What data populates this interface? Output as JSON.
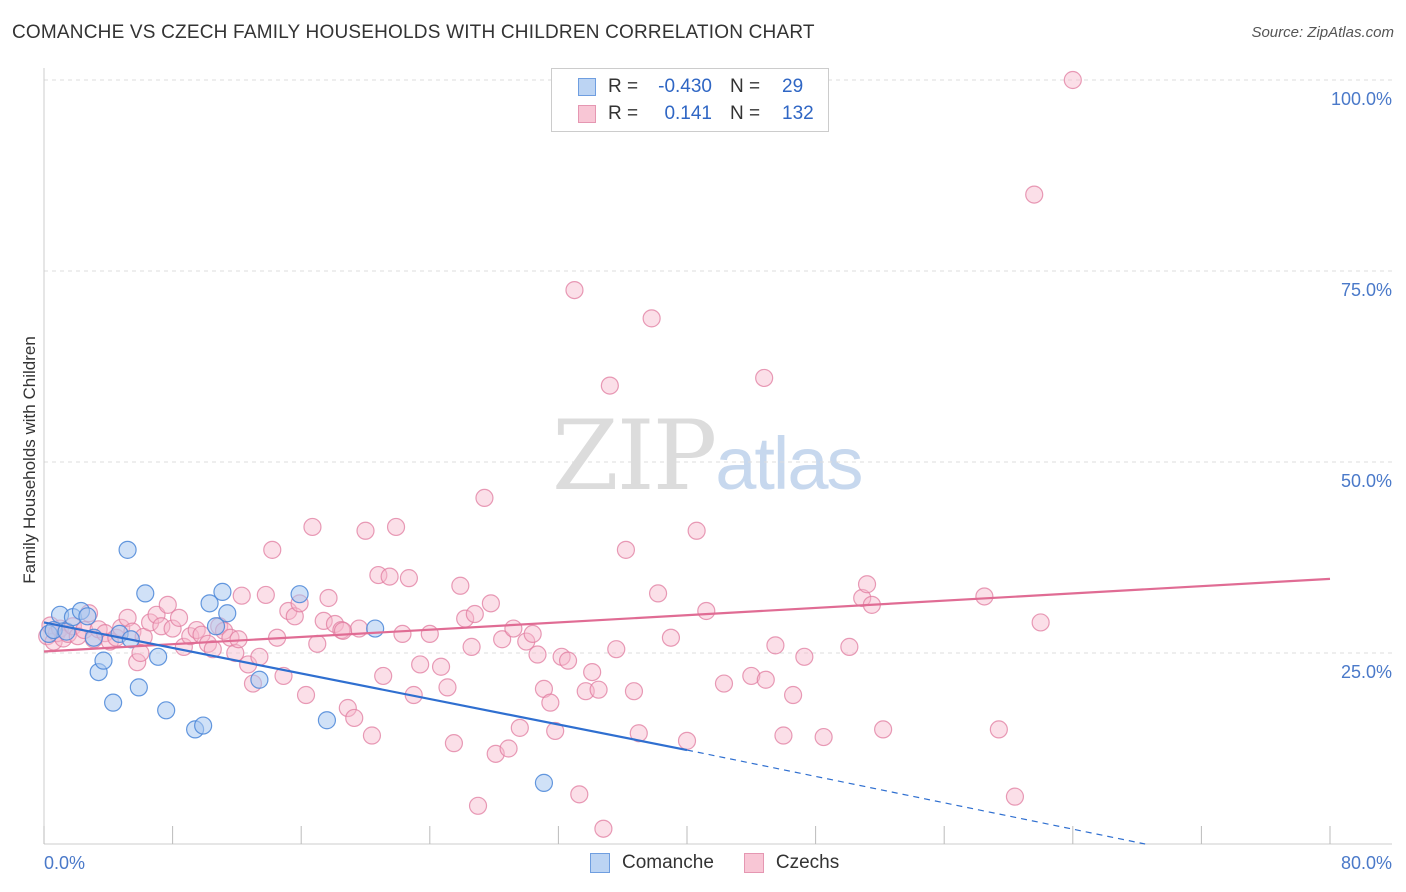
{
  "title": "COMANCHE VS CZECH FAMILY HOUSEHOLDS WITH CHILDREN CORRELATION CHART",
  "source": "Source: ZipAtlas.com",
  "watermark": {
    "zip": "ZIP",
    "atlas": "atlas"
  },
  "legend": {
    "comanche": {
      "r_label": "R =",
      "r_value": "-0.430",
      "n_label": "N =",
      "n_value": "29"
    },
    "czechs": {
      "r_label": "R =",
      "r_value": "0.141",
      "n_label": "N =",
      "n_value": "132"
    }
  },
  "bottom_legend": {
    "comanche": "Comanche",
    "czechs": "Czechs"
  },
  "colors": {
    "comanche_fill": "#a9c8f0",
    "comanche_stroke": "#4a86d8",
    "comanche_line": "#2f6fd0",
    "czechs_fill": "#f6b8cb",
    "czechs_stroke": "#e07b9f",
    "czechs_line": "#e06c94",
    "tick_label": "#4a79c9",
    "grid": "#dddddd"
  },
  "chart_data": {
    "type": "scatter",
    "title": "COMANCHE VS CZECH FAMILY HOUSEHOLDS WITH CHILDREN CORRELATION CHART",
    "xlabel": "",
    "ylabel": "Family Households with Children",
    "xlim": [
      0,
      80
    ],
    "ylim": [
      0,
      100
    ],
    "x_tick_labels": {
      "min": "0.0%",
      "max": "80.0%"
    },
    "y_ticks": [
      {
        "value": 25,
        "label": "25.0%"
      },
      {
        "value": 50,
        "label": "50.0%"
      },
      {
        "value": 75,
        "label": "75.0%"
      },
      {
        "value": 100,
        "label": "100.0%"
      }
    ],
    "grid": true,
    "series": [
      {
        "name": "Comanche",
        "points": [
          [
            0.3,
            27.5
          ],
          [
            0.6,
            28.0
          ],
          [
            1.0,
            30.0
          ],
          [
            1.4,
            27.8
          ],
          [
            1.8,
            29.7
          ],
          [
            2.3,
            30.5
          ],
          [
            2.7,
            29.8
          ],
          [
            3.1,
            27.0
          ],
          [
            3.4,
            22.5
          ],
          [
            3.7,
            24.0
          ],
          [
            4.3,
            18.5
          ],
          [
            4.7,
            27.5
          ],
          [
            5.4,
            26.8
          ],
          [
            5.9,
            20.5
          ],
          [
            6.3,
            32.8
          ],
          [
            7.1,
            24.5
          ],
          [
            7.6,
            17.5
          ],
          [
            9.4,
            15.0
          ],
          [
            9.9,
            15.5
          ],
          [
            10.3,
            31.5
          ],
          [
            10.7,
            28.5
          ],
          [
            11.1,
            33.0
          ],
          [
            11.4,
            30.2
          ],
          [
            13.4,
            21.5
          ],
          [
            15.9,
            32.7
          ],
          [
            17.6,
            16.2
          ],
          [
            20.6,
            28.2
          ],
          [
            31.1,
            8.0
          ],
          [
            5.2,
            38.5
          ]
        ],
        "trend": {
          "x0": 0,
          "y0": 29.0,
          "x1": 40,
          "y1": 12.3,
          "dashed_to": {
            "x": 68.5,
            "y": 0
          }
        }
      },
      {
        "name": "Czechs",
        "points": [
          [
            0.2,
            27.2
          ],
          [
            0.4,
            28.6
          ],
          [
            0.6,
            26.5
          ],
          [
            0.8,
            27.6
          ],
          [
            1.0,
            28.2
          ],
          [
            1.2,
            26.9
          ],
          [
            1.5,
            27.5
          ],
          [
            1.8,
            28.5
          ],
          [
            2.1,
            27.2
          ],
          [
            2.5,
            28.0
          ],
          [
            2.8,
            30.2
          ],
          [
            3.1,
            26.8
          ],
          [
            3.4,
            28.1
          ],
          [
            3.8,
            27.6
          ],
          [
            4.1,
            26.5
          ],
          [
            4.5,
            27.0
          ],
          [
            4.8,
            28.3
          ],
          [
            5.2,
            29.6
          ],
          [
            5.5,
            27.8
          ],
          [
            5.8,
            23.8
          ],
          [
            6.2,
            27.1
          ],
          [
            6.6,
            29.0
          ],
          [
            7.0,
            30.0
          ],
          [
            7.3,
            28.5
          ],
          [
            7.7,
            31.3
          ],
          [
            8.0,
            28.2
          ],
          [
            8.4,
            29.6
          ],
          [
            8.7,
            25.8
          ],
          [
            9.1,
            27.2
          ],
          [
            9.5,
            28.0
          ],
          [
            9.8,
            27.4
          ],
          [
            10.2,
            26.2
          ],
          [
            10.5,
            25.5
          ],
          [
            10.9,
            28.5
          ],
          [
            11.2,
            27.9
          ],
          [
            11.6,
            27.0
          ],
          [
            11.9,
            25.0
          ],
          [
            12.3,
            32.5
          ],
          [
            12.7,
            23.5
          ],
          [
            13.0,
            21.0
          ],
          [
            13.4,
            24.5
          ],
          [
            13.8,
            32.6
          ],
          [
            14.2,
            38.5
          ],
          [
            14.5,
            27.0
          ],
          [
            14.9,
            22.0
          ],
          [
            15.2,
            30.5
          ],
          [
            15.6,
            29.8
          ],
          [
            15.9,
            31.5
          ],
          [
            16.3,
            19.5
          ],
          [
            16.7,
            41.5
          ],
          [
            17.0,
            26.2
          ],
          [
            17.4,
            29.2
          ],
          [
            17.7,
            32.2
          ],
          [
            18.1,
            28.8
          ],
          [
            18.5,
            28.0
          ],
          [
            18.9,
            17.8
          ],
          [
            19.3,
            16.5
          ],
          [
            19.6,
            28.2
          ],
          [
            20.0,
            41.0
          ],
          [
            20.4,
            14.2
          ],
          [
            20.8,
            35.2
          ],
          [
            21.1,
            22.0
          ],
          [
            21.5,
            35.0
          ],
          [
            21.9,
            41.5
          ],
          [
            22.3,
            27.5
          ],
          [
            22.7,
            34.8
          ],
          [
            23.0,
            19.5
          ],
          [
            23.4,
            23.5
          ],
          [
            24.0,
            27.5
          ],
          [
            24.7,
            23.2
          ],
          [
            25.1,
            20.5
          ],
          [
            25.5,
            13.2
          ],
          [
            25.9,
            33.8
          ],
          [
            26.2,
            29.5
          ],
          [
            26.6,
            25.8
          ],
          [
            27.0,
            5.0
          ],
          [
            27.4,
            45.3
          ],
          [
            27.8,
            31.5
          ],
          [
            28.1,
            11.8
          ],
          [
            28.5,
            26.8
          ],
          [
            28.9,
            12.5
          ],
          [
            29.2,
            28.2
          ],
          [
            29.6,
            15.2
          ],
          [
            30.0,
            26.5
          ],
          [
            30.4,
            27.5
          ],
          [
            30.7,
            24.8
          ],
          [
            31.1,
            20.3
          ],
          [
            31.5,
            18.5
          ],
          [
            31.8,
            14.8
          ],
          [
            32.2,
            24.5
          ],
          [
            32.6,
            24.0
          ],
          [
            33.0,
            72.5
          ],
          [
            33.3,
            6.5
          ],
          [
            33.7,
            20.0
          ],
          [
            34.1,
            22.5
          ],
          [
            34.5,
            20.2
          ],
          [
            34.8,
            2.0
          ],
          [
            35.2,
            60.0
          ],
          [
            35.6,
            25.5
          ],
          [
            36.2,
            38.5
          ],
          [
            37.0,
            14.5
          ],
          [
            37.8,
            68.8
          ],
          [
            38.2,
            32.8
          ],
          [
            39.0,
            27.0
          ],
          [
            40.0,
            13.5
          ],
          [
            40.6,
            41.0
          ],
          [
            41.2,
            30.5
          ],
          [
            42.3,
            21.0
          ],
          [
            44.0,
            22.0
          ],
          [
            44.8,
            61.0
          ],
          [
            45.5,
            26.0
          ],
          [
            46.0,
            14.2
          ],
          [
            46.6,
            19.5
          ],
          [
            47.3,
            24.5
          ],
          [
            48.5,
            14.0
          ],
          [
            50.1,
            25.8
          ],
          [
            50.9,
            32.2
          ],
          [
            51.2,
            34.0
          ],
          [
            51.5,
            31.3
          ],
          [
            52.2,
            15.0
          ],
          [
            58.5,
            32.4
          ],
          [
            59.4,
            15.0
          ],
          [
            60.4,
            6.2
          ],
          [
            61.6,
            85.0
          ],
          [
            62.0,
            29.0
          ],
          [
            64.0,
            100.0
          ],
          [
            44.9,
            21.5
          ],
          [
            36.7,
            20.0
          ],
          [
            6.0,
            25.0
          ],
          [
            12.1,
            26.8
          ],
          [
            18.6,
            27.9
          ],
          [
            26.8,
            30.1
          ]
        ],
        "trend": {
          "x0": 0,
          "y0": 25.2,
          "x1": 80,
          "y1": 34.7
        }
      }
    ]
  }
}
